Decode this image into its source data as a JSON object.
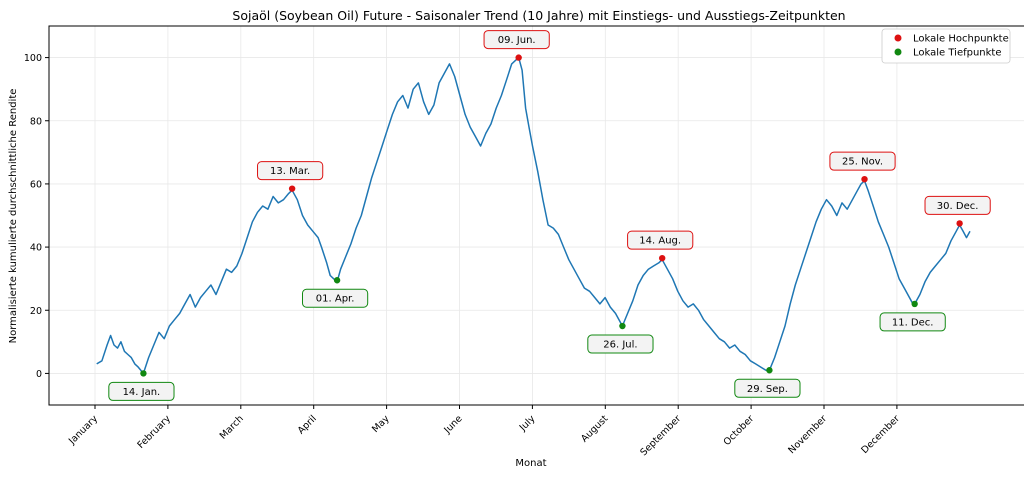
{
  "chart_data": {
    "type": "line",
    "title": "Sojaöl (Soybean Oil) Future - Saisonaler Trend (10 Jahre) mit Einstiegs- und Ausstiegs-Zeitpunkten",
    "xlabel": "Monat",
    "ylabel": "Normalisierte kumulierte durchschnittliche Rendite",
    "ylim": [
      -10,
      110
    ],
    "yticks": [
      0,
      20,
      40,
      60,
      80,
      100
    ],
    "grid": true,
    "legend_position": "top-right",
    "line_color": "#1f77b4",
    "months": [
      "January",
      "February",
      "March",
      "April",
      "May",
      "June",
      "July",
      "August",
      "September",
      "October",
      "November",
      "December"
    ],
    "series": [
      {
        "values": [
          [
            1,
            3
          ],
          [
            4,
            4
          ],
          [
            7,
            9
          ],
          [
            9,
            12
          ],
          [
            11,
            9
          ],
          [
            13,
            8
          ],
          [
            15,
            10
          ],
          [
            17,
            7
          ],
          [
            19,
            6
          ],
          [
            21,
            5
          ],
          [
            23,
            3
          ],
          [
            25,
            2
          ],
          [
            28,
            0
          ],
          [
            31,
            5
          ],
          [
            34,
            9
          ],
          [
            37,
            13
          ],
          [
            40,
            11
          ],
          [
            43,
            15
          ],
          [
            46,
            17
          ],
          [
            49,
            19
          ],
          [
            52,
            22
          ],
          [
            55,
            25
          ],
          [
            58,
            21
          ],
          [
            61,
            24
          ],
          [
            64,
            26
          ],
          [
            67,
            28
          ],
          [
            70,
            25
          ],
          [
            73,
            29
          ],
          [
            76,
            33
          ],
          [
            79,
            32
          ],
          [
            82,
            34
          ],
          [
            85,
            38
          ],
          [
            88,
            43
          ],
          [
            91,
            48
          ],
          [
            94,
            51
          ],
          [
            97,
            53
          ],
          [
            100,
            52
          ],
          [
            103,
            56
          ],
          [
            106,
            54
          ],
          [
            109,
            55
          ],
          [
            112,
            57
          ],
          [
            114,
            58
          ],
          [
            117,
            55
          ],
          [
            120,
            50
          ],
          [
            123,
            47
          ],
          [
            126,
            45
          ],
          [
            129,
            43
          ],
          [
            131,
            40
          ],
          [
            134,
            35
          ],
          [
            136,
            31
          ],
          [
            138,
            30
          ],
          [
            140,
            29
          ],
          [
            142,
            33
          ],
          [
            145,
            37
          ],
          [
            148,
            41
          ],
          [
            151,
            46
          ],
          [
            154,
            50
          ],
          [
            157,
            56
          ],
          [
            160,
            62
          ],
          [
            163,
            67
          ],
          [
            166,
            72
          ],
          [
            169,
            77
          ],
          [
            172,
            82
          ],
          [
            175,
            86
          ],
          [
            178,
            88
          ],
          [
            181,
            84
          ],
          [
            184,
            90
          ],
          [
            187,
            92
          ],
          [
            190,
            86
          ],
          [
            193,
            82
          ],
          [
            196,
            85
          ],
          [
            199,
            92
          ],
          [
            202,
            95
          ],
          [
            205,
            98
          ],
          [
            208,
            94
          ],
          [
            211,
            88
          ],
          [
            214,
            82
          ],
          [
            217,
            78
          ],
          [
            220,
            75
          ],
          [
            223,
            72
          ],
          [
            226,
            76
          ],
          [
            229,
            79
          ],
          [
            232,
            84
          ],
          [
            235,
            88
          ],
          [
            238,
            93
          ],
          [
            241,
            98
          ],
          [
            243,
            99
          ],
          [
            245,
            100
          ],
          [
            247,
            96
          ],
          [
            249,
            84
          ],
          [
            251,
            78
          ],
          [
            253,
            72
          ],
          [
            256,
            64
          ],
          [
            259,
            55
          ],
          [
            262,
            47
          ],
          [
            265,
            46
          ],
          [
            268,
            44
          ],
          [
            271,
            40
          ],
          [
            274,
            36
          ],
          [
            277,
            33
          ],
          [
            280,
            30
          ],
          [
            283,
            27
          ],
          [
            286,
            26
          ],
          [
            289,
            24
          ],
          [
            292,
            22
          ],
          [
            295,
            24
          ],
          [
            298,
            21
          ],
          [
            301,
            19
          ],
          [
            304,
            16
          ],
          [
            305,
            15
          ],
          [
            308,
            19
          ],
          [
            311,
            23
          ],
          [
            314,
            28
          ],
          [
            317,
            31
          ],
          [
            320,
            33
          ],
          [
            323,
            34
          ],
          [
            326,
            35
          ],
          [
            328,
            36
          ],
          [
            331,
            33
          ],
          [
            334,
            30
          ],
          [
            337,
            26
          ],
          [
            340,
            23
          ],
          [
            343,
            21
          ],
          [
            346,
            22
          ],
          [
            349,
            20
          ],
          [
            352,
            17
          ],
          [
            355,
            15
          ],
          [
            358,
            13
          ],
          [
            361,
            11
          ],
          [
            364,
            10
          ],
          [
            367,
            8
          ],
          [
            370,
            9
          ],
          [
            373,
            7
          ],
          [
            376,
            6
          ],
          [
            379,
            4
          ],
          [
            382,
            3
          ],
          [
            385,
            2
          ],
          [
            388,
            1
          ],
          [
            390,
            1
          ],
          [
            393,
            5
          ],
          [
            396,
            10
          ],
          [
            399,
            15
          ],
          [
            402,
            22
          ],
          [
            405,
            28
          ],
          [
            408,
            33
          ],
          [
            411,
            38
          ],
          [
            414,
            43
          ],
          [
            417,
            48
          ],
          [
            420,
            52
          ],
          [
            423,
            55
          ],
          [
            426,
            53
          ],
          [
            429,
            50
          ],
          [
            432,
            54
          ],
          [
            435,
            52
          ],
          [
            438,
            55
          ],
          [
            441,
            58
          ],
          [
            443,
            60
          ],
          [
            445,
            61
          ],
          [
            447,
            58
          ],
          [
            450,
            53
          ],
          [
            453,
            48
          ],
          [
            456,
            44
          ],
          [
            459,
            40
          ],
          [
            462,
            35
          ],
          [
            465,
            30
          ],
          [
            468,
            27
          ],
          [
            471,
            24
          ],
          [
            473,
            22
          ],
          [
            474,
            22
          ],
          [
            477,
            25
          ],
          [
            480,
            29
          ],
          [
            483,
            32
          ],
          [
            486,
            34
          ],
          [
            489,
            36
          ],
          [
            492,
            38
          ],
          [
            495,
            42
          ],
          [
            498,
            45
          ],
          [
            500,
            47
          ],
          [
            502,
            45
          ],
          [
            504,
            43
          ],
          [
            506,
            45
          ]
        ]
      }
    ],
    "highs": [
      {
        "x": 114,
        "y": 58.5,
        "label": "13. Mar."
      },
      {
        "x": 245,
        "y": 100,
        "label": "09. Jun."
      },
      {
        "x": 328,
        "y": 36.5,
        "label": "14. Aug."
      },
      {
        "x": 445,
        "y": 61.5,
        "label": "25. Nov."
      },
      {
        "x": 500,
        "y": 47.5,
        "label": "30. Dec."
      }
    ],
    "lows": [
      {
        "x": 28,
        "y": 0,
        "label": "14. Jan."
      },
      {
        "x": 140,
        "y": 29.5,
        "label": "01. Apr."
      },
      {
        "x": 305,
        "y": 15,
        "label": "26. Jul."
      },
      {
        "x": 390,
        "y": 1,
        "label": "29. Sep."
      },
      {
        "x": 474,
        "y": 22,
        "label": "11. Dec."
      }
    ],
    "legend": [
      {
        "label": "Lokale Hochpunkte",
        "color": "#dd1111"
      },
      {
        "label": "Lokale Tiefpunkte",
        "color": "#118811"
      }
    ]
  }
}
